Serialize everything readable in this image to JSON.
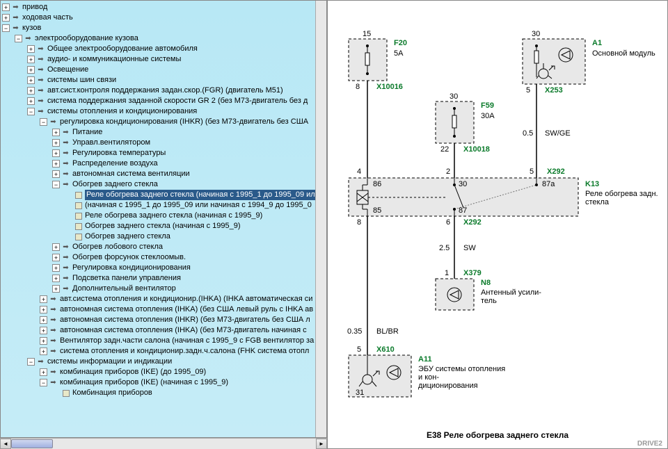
{
  "tree": {
    "nodes": [
      {
        "depth": 0,
        "toggle": "+",
        "icon": "arrow",
        "label": "привод"
      },
      {
        "depth": 0,
        "toggle": "+",
        "icon": "arrow",
        "label": "ходовая часть"
      },
      {
        "depth": 0,
        "toggle": "-",
        "icon": "arrow",
        "label": "кузов"
      },
      {
        "depth": 1,
        "toggle": "-",
        "icon": "arrow",
        "label": "электрооборудование кузова"
      },
      {
        "depth": 2,
        "toggle": "+",
        "icon": "arrow",
        "label": "Общее электрооборудование автомобиля"
      },
      {
        "depth": 2,
        "toggle": "+",
        "icon": "arrow",
        "label": "аудио- и коммуникационные системы"
      },
      {
        "depth": 2,
        "toggle": "+",
        "icon": "arrow",
        "label": "Освещение"
      },
      {
        "depth": 2,
        "toggle": "+",
        "icon": "arrow",
        "label": "системы шин связи"
      },
      {
        "depth": 2,
        "toggle": "+",
        "icon": "arrow",
        "label": "авт.сист.контроля поддержания задан.скор.(FGR) (двигатель M51)"
      },
      {
        "depth": 2,
        "toggle": "+",
        "icon": "arrow",
        "label": "система поддержания заданной скорости GR 2 (без M73-двигатель без д"
      },
      {
        "depth": 2,
        "toggle": "-",
        "icon": "arrow",
        "label": "системы отопления и кондиционирования"
      },
      {
        "depth": 3,
        "toggle": "-",
        "icon": "arrow",
        "label": "регулировка кондиционирования (IHKR) (без M73-двигатель без США "
      },
      {
        "depth": 4,
        "toggle": "+",
        "icon": "arrow",
        "label": "Питание"
      },
      {
        "depth": 4,
        "toggle": "+",
        "icon": "arrow",
        "label": "Управл.вентилятором"
      },
      {
        "depth": 4,
        "toggle": "+",
        "icon": "arrow",
        "label": "Регулировка температуры"
      },
      {
        "depth": 4,
        "toggle": "+",
        "icon": "arrow",
        "label": "Распределение воздуха"
      },
      {
        "depth": 4,
        "toggle": "+",
        "icon": "arrow",
        "label": "автономная система вентиляции"
      },
      {
        "depth": 4,
        "toggle": "-",
        "icon": "arrow",
        "label": "Обогрев заднего стекла"
      },
      {
        "depth": 5,
        "toggle": "",
        "icon": "doc",
        "label": "Реле обогрева заднего стекла (начиная с 1995_1 до 1995_09 ил",
        "selected": true
      },
      {
        "depth": 5,
        "toggle": "",
        "icon": "doc",
        "label": " (начиная с 1995_1 до 1995_09 или начиная с 1994_9 до 1995_0"
      },
      {
        "depth": 5,
        "toggle": "",
        "icon": "doc",
        "label": "Реле обогрева заднего стекла (начиная с 1995_9)"
      },
      {
        "depth": 5,
        "toggle": "",
        "icon": "doc",
        "label": "Обогрев заднего стекла (начиная с 1995_9)"
      },
      {
        "depth": 5,
        "toggle": "",
        "icon": "doc",
        "label": "Обогрев заднего стекла"
      },
      {
        "depth": 4,
        "toggle": "+",
        "icon": "arrow",
        "label": "Обогрев лобового стекла"
      },
      {
        "depth": 4,
        "toggle": "+",
        "icon": "arrow",
        "label": "Обогрев форсунок стеклоомыв."
      },
      {
        "depth": 4,
        "toggle": "+",
        "icon": "arrow",
        "label": "Регулировка кондиционирования"
      },
      {
        "depth": 4,
        "toggle": "+",
        "icon": "arrow",
        "label": "Подсветка панели управления"
      },
      {
        "depth": 4,
        "toggle": "+",
        "icon": "arrow",
        "label": "Дополнительный вентилятор"
      },
      {
        "depth": 3,
        "toggle": "+",
        "icon": "arrow",
        "label": "авт.система отопления и кондиционир.(IHKA) (IHKA автоматическая си"
      },
      {
        "depth": 3,
        "toggle": "+",
        "icon": "arrow",
        "label": "автономная система отопления (IHKA) (без США левый руль с IHKA ав"
      },
      {
        "depth": 3,
        "toggle": "+",
        "icon": "arrow",
        "label": "автономная система отопления (IHKR) (без M73-двигатель без США л"
      },
      {
        "depth": 3,
        "toggle": "+",
        "icon": "arrow",
        "label": "автономная система отопления (IHKA) (без M73-двигатель начиная с"
      },
      {
        "depth": 3,
        "toggle": "+",
        "icon": "arrow",
        "label": "Вентилятор задн.части салона (начиная с 1995_9 с FGB вентилятор за"
      },
      {
        "depth": 3,
        "toggle": "+",
        "icon": "arrow",
        "label": "система отопления и кондиционир.задн.ч.салона (FHK система отопл"
      },
      {
        "depth": 2,
        "toggle": "-",
        "icon": "arrow",
        "label": "системы информации и индикации"
      },
      {
        "depth": 3,
        "toggle": "+",
        "icon": "arrow",
        "label": "комбинация приборов (IKE) (до 1995_09)"
      },
      {
        "depth": 3,
        "toggle": "-",
        "icon": "arrow",
        "label": "комбинация приборов (IKE) (начиная с 1995_9)"
      },
      {
        "depth": 4,
        "toggle": "",
        "icon": "doc",
        "label": "Комбинация приборов"
      }
    ]
  },
  "diagram": {
    "title": "E38 Реле обогрева заднего стекла",
    "components": {
      "f20": {
        "id": "F20",
        "rating": "5A",
        "pin_top": "15",
        "pin_bot": "8",
        "conn": "X10016"
      },
      "f59": {
        "id": "F59",
        "rating": "30A",
        "pin_top": "30",
        "pin_bot": "22",
        "conn": "X10018"
      },
      "a1": {
        "id": "A1",
        "name": "Основной модуль",
        "pin_top": "30",
        "pin_bot": "5",
        "conn": "X253"
      },
      "k13": {
        "id": "K13",
        "name": "Реле обогрева задн. стекла",
        "conn_top": "X292",
        "conn_bot": "X292",
        "pins": {
          "tl": "4",
          "tc": "2",
          "tr": "5",
          "bl": "8",
          "bc": "6",
          "in1": "86",
          "in2": "30",
          "in3": "87a",
          "in4": "85",
          "in5": "87"
        }
      },
      "n8": {
        "id": "N8",
        "name": "Антенный усили-\nтель",
        "pin": "1",
        "conn": "X379"
      },
      "a11": {
        "id": "A11",
        "name": "ЭБУ системы отопления и кон-\nдиционирования",
        "pin": "5",
        "pin2": "31",
        "conn": "X610"
      }
    },
    "wires": {
      "sw_ge": {
        "len": "0.5",
        "label": "SW/GE"
      },
      "sw": {
        "len": "2.5",
        "label": "SW"
      },
      "bl_br": {
        "len": "0.35",
        "label": "BL/BR"
      }
    },
    "colors": {
      "green": "#0a7a2a",
      "box_fill": "#e8e8e8",
      "dash": "#000",
      "line": "#000"
    }
  }
}
